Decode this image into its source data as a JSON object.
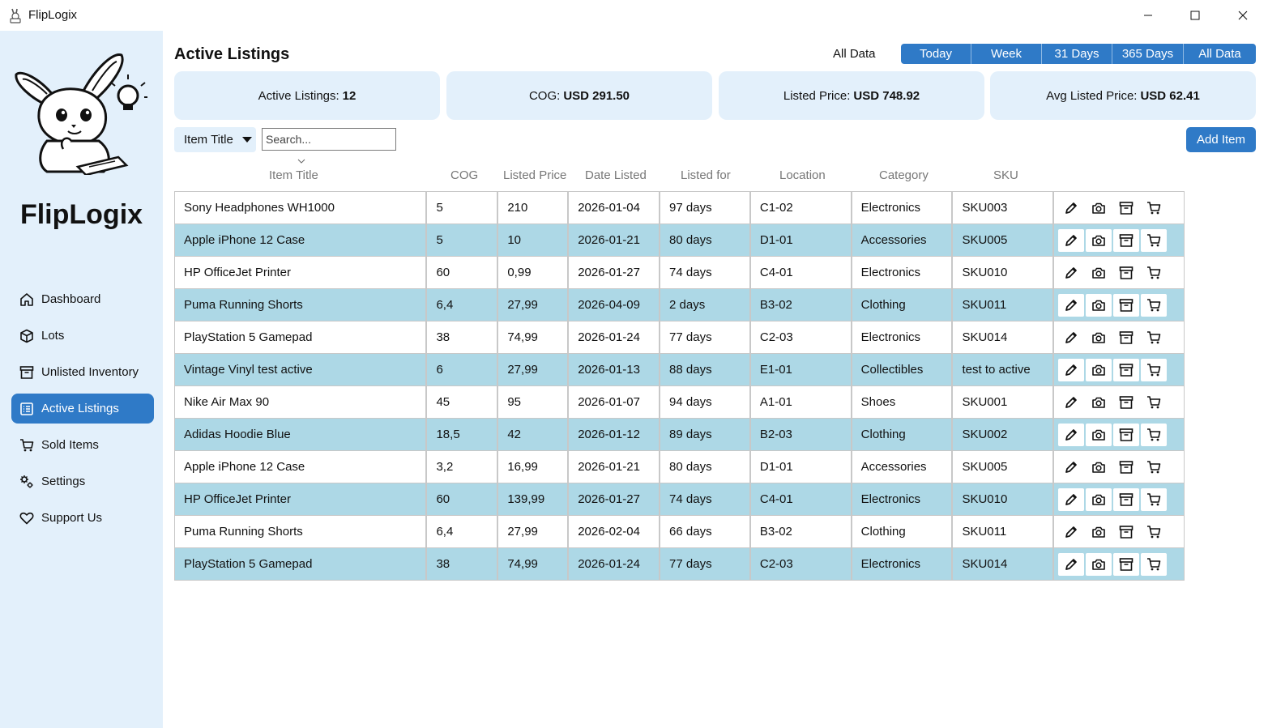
{
  "window": {
    "title": "FlipLogix"
  },
  "sidebar": {
    "brand": "FlipLogix",
    "items": [
      {
        "label": "Dashboard",
        "icon": "home-icon"
      },
      {
        "label": "Lots",
        "icon": "box-icon"
      },
      {
        "label": "Unlisted Inventory",
        "icon": "archive-icon"
      },
      {
        "label": "Active Listings",
        "icon": "list-icon",
        "active": true
      },
      {
        "label": "Sold Items",
        "icon": "cart-icon"
      },
      {
        "label": "Settings",
        "icon": "gears-icon"
      },
      {
        "label": "Support Us",
        "icon": "heart-icon"
      }
    ]
  },
  "header": {
    "title": "Active Listings",
    "range_label": "All Data",
    "ranges": [
      "Today",
      "Week",
      "31 Days",
      "365 Days",
      "All Data"
    ]
  },
  "stats": {
    "active_label": "Active Listings:",
    "active_value": "12",
    "cog_label": "COG:",
    "cog_value": "USD 291.50",
    "listed_label": "Listed Price:",
    "listed_value": "USD 748.92",
    "avg_label": "Avg Listed Price:",
    "avg_value": "USD 62.41"
  },
  "filter": {
    "field": "Item Title",
    "placeholder": "Search..."
  },
  "toolbar": {
    "add_label": "Add Item"
  },
  "table": {
    "columns": [
      "Item Title",
      "COG",
      "Listed Price",
      "Date Listed",
      "Listed for",
      "Location",
      "Category",
      "SKU"
    ],
    "rows": [
      [
        "Sony Headphones WH1000",
        "5",
        "210",
        "2026-01-04",
        "97 days",
        "C1-02",
        "Electronics",
        "SKU003"
      ],
      [
        "Apple iPhone 12 Case",
        "5",
        "10",
        "2026-01-21",
        "80 days",
        "D1-01",
        "Accessories",
        "SKU005"
      ],
      [
        "HP OfficeJet Printer",
        "60",
        "0,99",
        "2026-01-27",
        "74 days",
        "C4-01",
        "Electronics",
        "SKU010"
      ],
      [
        "Puma Running Shorts",
        "6,4",
        "27,99",
        "2026-04-09",
        "2 days",
        "B3-02",
        "Clothing",
        "SKU011"
      ],
      [
        "PlayStation 5 Gamepad",
        "38",
        "74,99",
        "2026-01-24",
        "77 days",
        "C2-03",
        "Electronics",
        "SKU014"
      ],
      [
        "Vintage Vinyl test active",
        "6",
        "27,99",
        "2026-01-13",
        "88 days",
        "E1-01",
        "Collectibles",
        "test to active"
      ],
      [
        "Nike Air Max 90",
        "45",
        "95",
        "2026-01-07",
        "94 days",
        "A1-01",
        "Shoes",
        "SKU001"
      ],
      [
        "Adidas Hoodie Blue",
        "18,5",
        "42",
        "2026-01-12",
        "89 days",
        "B2-03",
        "Clothing",
        "SKU002"
      ],
      [
        "Apple iPhone 12 Case",
        "3,2",
        "16,99",
        "2026-01-21",
        "80 days",
        "D1-01",
        "Accessories",
        "SKU005"
      ],
      [
        "HP OfficeJet Printer",
        "60",
        "139,99",
        "2026-01-27",
        "74 days",
        "C4-01",
        "Electronics",
        "SKU010"
      ],
      [
        "Puma Running Shorts",
        "6,4",
        "27,99",
        "2026-02-04",
        "66 days",
        "B3-02",
        "Clothing",
        "SKU011"
      ],
      [
        "PlayStation 5 Gamepad",
        "38",
        "74,99",
        "2026-01-24",
        "77 days",
        "C2-03",
        "Electronics",
        "SKU014"
      ]
    ],
    "row_actions": [
      "edit-icon",
      "camera-icon",
      "archive-icon",
      "cart-icon"
    ]
  },
  "colors": {
    "accent": "#2f7ac7",
    "sidebar_bg": "#e3f0fb",
    "row_alt": "#add8e6"
  }
}
